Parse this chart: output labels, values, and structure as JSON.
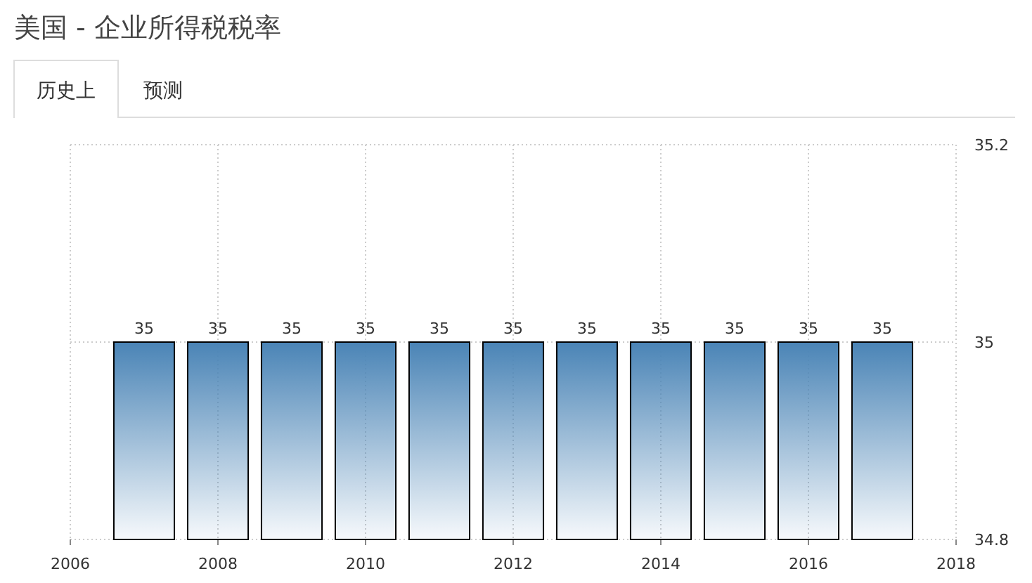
{
  "chart_data": {
    "type": "bar",
    "title": "美国 - 企业所得税税率",
    "annotations": [
      "历史上",
      "预测"
    ],
    "x": [
      2007,
      2008,
      2009,
      2010,
      2011,
      2012,
      2013,
      2014,
      2015,
      2016,
      2017
    ],
    "series": [
      {
        "color": "#4a84b6",
        "values": [
          35,
          35,
          35,
          35,
          35,
          35,
          35,
          35,
          35,
          35,
          35
        ]
      }
    ],
    "xlim": [
      2006,
      2018
    ],
    "xticks": [
      2006,
      2008,
      2010,
      2012,
      2014,
      2016,
      2018
    ],
    "ylim": [
      34.8,
      35.2
    ],
    "yticks": [
      34.8,
      35,
      35.2
    ],
    "grid": true,
    "data_labels": true
  }
}
